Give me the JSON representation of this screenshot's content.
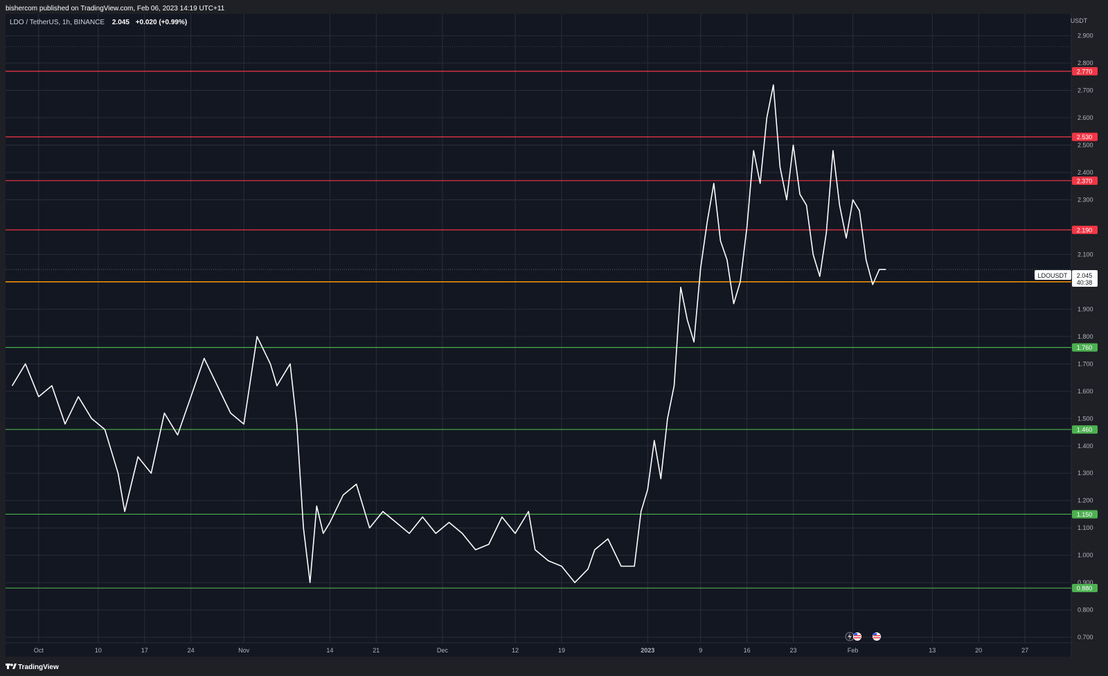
{
  "header": {
    "published_by": "bishercom published on TradingView.com, Feb 06, 2023 14:19 UTC+11"
  },
  "legend": {
    "symbol_text": "LDO / TetherUS, 1h, BINANCE",
    "price": "2.045",
    "change": "+0.020 (+0.99%)"
  },
  "footer": {
    "brand": "TradingView"
  },
  "colors": {
    "background": "#131722",
    "outer": "#1f2026",
    "grid": "#2a2e39",
    "price_line": "#ffffff",
    "resistance": "#f23645",
    "support": "#4caf50",
    "pivot": "#ff9800",
    "axis_text": "#b2b5be"
  },
  "price_tag": {
    "symbol": "LDOUSDT",
    "price": "2.045",
    "countdown": "40:38"
  },
  "event_icons": [
    "lightning-icon",
    "us-flag-icon",
    "us-flag-icon"
  ],
  "chart_data": {
    "type": "line",
    "title": "",
    "xlabel": "",
    "ylabel": "USDT",
    "ylim": [
      0.68,
      2.98
    ],
    "grid": true,
    "legend_position": "top-left",
    "y_axis_label": "USDT",
    "y_ticks": [
      "2.900",
      "2.800",
      "2.700",
      "2.600",
      "2.500",
      "2.400",
      "2.300",
      "2.100",
      "1.900",
      "1.800",
      "1.700",
      "1.600",
      "1.500",
      "1.400",
      "1.300",
      "1.200",
      "1.100",
      "1.000",
      "0.900",
      "0.800",
      "0.700"
    ],
    "x_ticks": [
      {
        "label": "Oct",
        "date": "2022-10-01",
        "bold": false
      },
      {
        "label": "10",
        "date": "2022-10-10",
        "bold": false
      },
      {
        "label": "17",
        "date": "2022-10-17",
        "bold": false
      },
      {
        "label": "24",
        "date": "2022-10-24",
        "bold": false
      },
      {
        "label": "Nov",
        "date": "2022-11-01",
        "bold": false
      },
      {
        "label": "14",
        "date": "2022-11-14",
        "bold": false
      },
      {
        "label": "21",
        "date": "2022-11-21",
        "bold": false
      },
      {
        "label": "Dec",
        "date": "2022-12-01",
        "bold": false
      },
      {
        "label": "12",
        "date": "2022-12-12",
        "bold": false
      },
      {
        "label": "19",
        "date": "2022-12-19",
        "bold": false
      },
      {
        "label": "2023",
        "date": "2023-01-01",
        "bold": true
      },
      {
        "label": "9",
        "date": "2023-01-09",
        "bold": false
      },
      {
        "label": "16",
        "date": "2023-01-16",
        "bold": false
      },
      {
        "label": "23",
        "date": "2023-01-23",
        "bold": false
      },
      {
        "label": "Feb",
        "date": "2023-02-01",
        "bold": false
      },
      {
        "label": "13",
        "date": "2023-02-13",
        "bold": false
      },
      {
        "label": "20",
        "date": "2023-02-20",
        "bold": false
      },
      {
        "label": "27",
        "date": "2023-02-27",
        "bold": false
      }
    ],
    "levels": [
      {
        "value": 2.77,
        "label": "2.770",
        "kind": "resistance"
      },
      {
        "value": 2.53,
        "label": "2.530",
        "kind": "resistance"
      },
      {
        "value": 2.37,
        "label": "2.370",
        "kind": "resistance"
      },
      {
        "value": 2.19,
        "label": "2.190",
        "kind": "resistance"
      },
      {
        "value": 2.0,
        "label": "2.000",
        "kind": "pivot"
      },
      {
        "value": 1.76,
        "label": "1.760",
        "kind": "support"
      },
      {
        "value": 1.46,
        "label": "1.460",
        "kind": "support"
      },
      {
        "value": 1.15,
        "label": "1.150",
        "kind": "support"
      },
      {
        "value": 0.88,
        "label": "0.880",
        "kind": "support"
      }
    ],
    "current_price": 2.045,
    "series": [
      {
        "x": [
          "2022-09-27",
          "2022-09-29",
          "2022-10-01",
          "2022-10-03",
          "2022-10-05",
          "2022-10-07",
          "2022-10-09",
          "2022-10-11",
          "2022-10-13",
          "2022-10-14",
          "2022-10-16",
          "2022-10-18",
          "2022-10-20",
          "2022-10-22",
          "2022-10-24",
          "2022-10-26",
          "2022-10-28",
          "2022-10-30",
          "2022-11-01",
          "2022-11-03",
          "2022-11-05",
          "2022-11-06",
          "2022-11-08",
          "2022-11-09",
          "2022-11-10",
          "2022-11-11",
          "2022-11-12",
          "2022-11-13",
          "2022-11-14",
          "2022-11-16",
          "2022-11-18",
          "2022-11-20",
          "2022-11-22",
          "2022-11-24",
          "2022-11-26",
          "2022-11-28",
          "2022-11-30",
          "2022-12-02",
          "2022-12-04",
          "2022-12-06",
          "2022-12-08",
          "2022-12-10",
          "2022-12-12",
          "2022-12-14",
          "2022-12-15",
          "2022-12-17",
          "2022-12-19",
          "2022-12-21",
          "2022-12-23",
          "2022-12-24",
          "2022-12-26",
          "2022-12-28",
          "2022-12-30",
          "2022-12-31",
          "2023-01-01",
          "2023-01-02",
          "2023-01-03",
          "2023-01-04",
          "2023-01-05",
          "2023-01-06",
          "2023-01-07",
          "2023-01-08",
          "2023-01-09",
          "2023-01-10",
          "2023-01-11",
          "2023-01-12",
          "2023-01-13",
          "2023-01-14",
          "2023-01-15",
          "2023-01-16",
          "2023-01-17",
          "2023-01-18",
          "2023-01-19",
          "2023-01-20",
          "2023-01-21",
          "2023-01-22",
          "2023-01-23",
          "2023-01-24",
          "2023-01-25",
          "2023-01-26",
          "2023-01-27",
          "2023-01-28",
          "2023-01-29",
          "2023-01-30",
          "2023-01-31",
          "2023-02-01",
          "2023-02-02",
          "2023-02-03",
          "2023-02-04",
          "2023-02-05",
          "2023-02-06"
        ],
        "values": [
          1.62,
          1.7,
          1.58,
          1.62,
          1.48,
          1.58,
          1.5,
          1.46,
          1.3,
          1.16,
          1.36,
          1.3,
          1.52,
          1.44,
          1.58,
          1.72,
          1.62,
          1.52,
          1.48,
          1.8,
          1.7,
          1.62,
          1.7,
          1.48,
          1.1,
          0.9,
          1.18,
          1.08,
          1.12,
          1.22,
          1.26,
          1.1,
          1.16,
          1.12,
          1.08,
          1.14,
          1.08,
          1.12,
          1.08,
          1.02,
          1.04,
          1.14,
          1.08,
          1.16,
          1.02,
          0.98,
          0.96,
          0.9,
          0.95,
          1.02,
          1.06,
          0.96,
          0.96,
          1.16,
          1.24,
          1.42,
          1.28,
          1.5,
          1.62,
          1.98,
          1.86,
          1.78,
          2.05,
          2.22,
          2.36,
          2.15,
          2.08,
          1.92,
          2.0,
          2.2,
          2.48,
          2.36,
          2.6,
          2.72,
          2.42,
          2.3,
          2.5,
          2.32,
          2.28,
          2.1,
          2.02,
          2.18,
          2.48,
          2.28,
          2.16,
          2.3,
          2.26,
          2.08,
          1.99,
          2.045,
          2.045
        ]
      }
    ]
  }
}
